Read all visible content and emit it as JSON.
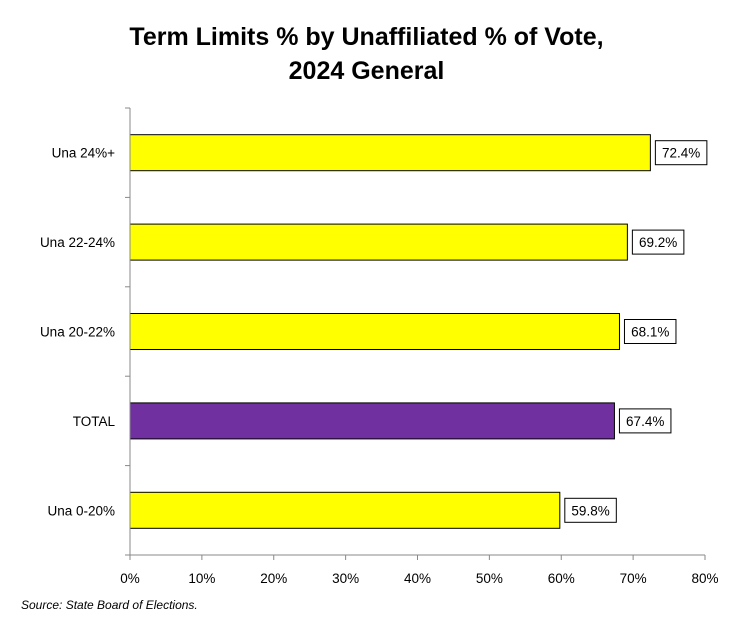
{
  "chart_data": {
    "type": "bar",
    "orientation": "horizontal",
    "title_line1": "Term Limits % by Unaffiliated % of Vote,",
    "title_line2": "2024 General",
    "categories": [
      "Una 24%+",
      "Una 22-24%",
      "Una 20-22%",
      "TOTAL",
      "Una 0-20%"
    ],
    "values": [
      72.4,
      69.2,
      68.1,
      67.4,
      59.8
    ],
    "data_labels": [
      "72.4%",
      "69.2%",
      "68.1%",
      "67.4%",
      "59.8%"
    ],
    "bar_colors": [
      "#FFFF00",
      "#FFFF00",
      "#FFFF00",
      "#7030A0",
      "#FFFF00"
    ],
    "xlim": [
      0,
      80
    ],
    "x_ticks": [
      0,
      10,
      20,
      30,
      40,
      50,
      60,
      70,
      80
    ],
    "x_tick_labels": [
      "0%",
      "10%",
      "20%",
      "30%",
      "40%",
      "50%",
      "60%",
      "70%",
      "80%"
    ],
    "xlabel": "",
    "ylabel": "",
    "grid": false,
    "legend": "none"
  },
  "source": "Source: State Board of Elections."
}
